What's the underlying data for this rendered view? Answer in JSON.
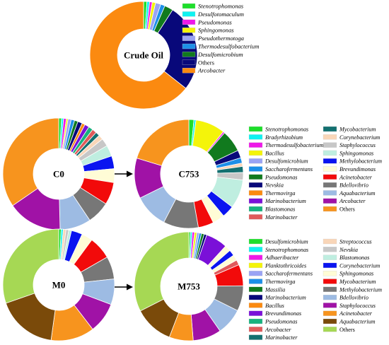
{
  "chart_data": [
    {
      "type": "pie",
      "center_label": "Crude Oil",
      "slices": [
        {
          "name": "Stenotrophomonas",
          "value": 1.0,
          "color": "#1ede2b"
        },
        {
          "name": "Desulfotomaculum",
          "value": 0.8,
          "color": "#10f2f0"
        },
        {
          "name": "Pseudomonas",
          "value": 0.8,
          "color": "#ee18e8"
        },
        {
          "name": "Sphingomonas",
          "value": 1.0,
          "color": "#f4f40a"
        },
        {
          "name": "Pseudothermotoga",
          "value": 1.6,
          "color": "#9aa3f4"
        },
        {
          "name": "Thermodesulfobacterium",
          "value": 1.3,
          "color": "#1c8fe8"
        },
        {
          "name": "Desulfomicrobium",
          "value": 2.6,
          "color": "#117a1e"
        },
        {
          "name": "Others",
          "value": 26.5,
          "color": "#08087a"
        },
        {
          "name": "Arcobacter",
          "value": 64.4,
          "color": "#fb8a10"
        }
      ]
    },
    {
      "type": "pie",
      "center_label": "C0",
      "slices": [
        {
          "name": "Stenotrophomonas",
          "value": 0.8,
          "color": "#1ede2b"
        },
        {
          "name": "Bradyrhizobium",
          "value": 0.6,
          "color": "#10f2f0"
        },
        {
          "name": "Thermodesulfobacterium",
          "value": 0.8,
          "color": "#ee18e8"
        },
        {
          "name": "Bacillus",
          "value": 0.5,
          "color": "#f4f40a"
        },
        {
          "name": "Desulfomicrobium",
          "value": 0.9,
          "color": "#9aa3f4"
        },
        {
          "name": "Saccharofermentans",
          "value": 1.0,
          "color": "#1c8fe8"
        },
        {
          "name": "Pseudomonas",
          "value": 1.0,
          "color": "#117a1e"
        },
        {
          "name": "Nevskia",
          "value": 1.3,
          "color": "#08087a"
        },
        {
          "name": "Thermovirga",
          "value": 0.9,
          "color": "#fb8a10"
        },
        {
          "name": "Marinobacterium",
          "value": 1.3,
          "color": "#7a10d8"
        },
        {
          "name": "Blastomonas",
          "value": 1.3,
          "color": "#18b27e"
        },
        {
          "name": "Marinobacter",
          "value": 1.3,
          "color": "#e05a5a"
        },
        {
          "name": "Mycobacterium",
          "value": 1.2,
          "color": "#137070"
        },
        {
          "name": "Corynebacterium",
          "value": 1.4,
          "color": "#f9d6b8"
        },
        {
          "name": "Staphylococcus",
          "value": 2.3,
          "color": "#c7c7c7"
        },
        {
          "name": "Sphingomonas",
          "value": 3.2,
          "color": "#bfeee0"
        },
        {
          "name": "Methylobacterium",
          "value": 3.7,
          "color": "#0a14f0"
        },
        {
          "name": "Brevundimonas",
          "value": 4.0,
          "color": "#fffcd6"
        },
        {
          "name": "Acinetobacter",
          "value": 6.5,
          "color": "#f20a0a"
        },
        {
          "name": "Bdellovibrio",
          "value": 6.6,
          "color": "#777777"
        },
        {
          "name": "Aquabacterium",
          "value": 9.0,
          "color": "#9dbbe3"
        },
        {
          "name": "Arcobacter",
          "value": 15.8,
          "color": "#a012a6"
        },
        {
          "name": "Others",
          "value": 34.6,
          "color": "#f7941e"
        }
      ]
    },
    {
      "type": "pie",
      "center_label": "C753",
      "slices": [
        {
          "name": "Stenotrophomonas",
          "value": 1.5,
          "color": "#1ede2b"
        },
        {
          "name": "Bradyrhizobium",
          "value": 0.6,
          "color": "#10f2f0"
        },
        {
          "name": "Bacillus",
          "value": 8.8,
          "color": "#f4f40a"
        },
        {
          "name": "Thermodesulfobacterium",
          "value": 0.5,
          "color": "#ee18e8"
        },
        {
          "name": "Pseudomonas",
          "value": 6.5,
          "color": "#117a1e"
        },
        {
          "name": "Nevskia",
          "value": 2.3,
          "color": "#08087a"
        },
        {
          "name": "Saccharofermentans",
          "value": 1.6,
          "color": "#1c8fe8"
        },
        {
          "name": "Corynebacterium",
          "value": 1.0,
          "color": "#f9d6b8"
        },
        {
          "name": "Mycobacterium",
          "value": 1.8,
          "color": "#137070"
        },
        {
          "name": "Staphylococcus",
          "value": 2.2,
          "color": "#c7c7c7"
        },
        {
          "name": "Sphingomonas",
          "value": 8.6,
          "color": "#bfeee0"
        },
        {
          "name": "Methylobacterium",
          "value": 3.6,
          "color": "#0a14f0"
        },
        {
          "name": "Brevundimonas",
          "value": 3.6,
          "color": "#fffcd6"
        },
        {
          "name": "Acinetobacter",
          "value": 4.6,
          "color": "#f20a0a"
        },
        {
          "name": "Bdellovibrio",
          "value": 10.4,
          "color": "#777777"
        },
        {
          "name": "Aquabacterium",
          "value": 10.1,
          "color": "#9dbbe3"
        },
        {
          "name": "Arcobacter",
          "value": 12.0,
          "color": "#a012a6"
        },
        {
          "name": "Others",
          "value": 20.3,
          "color": "#f7941e"
        }
      ]
    },
    {
      "type": "pie",
      "center_label": "M0",
      "slices": [
        {
          "name": "Desulfomicrobium",
          "value": 0.7,
          "color": "#1ede2b"
        },
        {
          "name": "Stenotrophomonas",
          "value": 0.6,
          "color": "#10f2f0"
        },
        {
          "name": "Streptococcus",
          "value": 0.8,
          "color": "#f9d6b8"
        },
        {
          "name": "Nevskia",
          "value": 0.8,
          "color": "#c7c7c7"
        },
        {
          "name": "Blastomonas",
          "value": 0.8,
          "color": "#bfeee0"
        },
        {
          "name": "Corynebacterium",
          "value": 3.2,
          "color": "#0a14f0"
        },
        {
          "name": "Sphingomonas",
          "value": 3.2,
          "color": "#fffcd6"
        },
        {
          "name": "Mycobacterium",
          "value": 6.6,
          "color": "#f20a0a"
        },
        {
          "name": "Methylobacterium",
          "value": 6.6,
          "color": "#777777"
        },
        {
          "name": "Bdellovibrio",
          "value": 7.4,
          "color": "#9dbbe3"
        },
        {
          "name": "Staphylococcus",
          "value": 8.9,
          "color": "#a012a6"
        },
        {
          "name": "Acinetobacter",
          "value": 12.6,
          "color": "#f7941e"
        },
        {
          "name": "Aquabacterium",
          "value": 17.5,
          "color": "#7a4a0a"
        },
        {
          "name": "Others",
          "value": 30.3,
          "color": "#a6d854"
        }
      ]
    },
    {
      "type": "pie",
      "center_label": "M753",
      "slices": [
        {
          "name": "Desulfomicrobium",
          "value": 0.5,
          "color": "#1ede2b"
        },
        {
          "name": "Stenotrophomonas",
          "value": 0.5,
          "color": "#10f2f0"
        },
        {
          "name": "Adhaeribacter",
          "value": 0.7,
          "color": "#ee18e8"
        },
        {
          "name": "Planktothricoides",
          "value": 0.7,
          "color": "#f4f40a"
        },
        {
          "name": "Saccharofermentans",
          "value": 0.7,
          "color": "#9aa3f4"
        },
        {
          "name": "Thermovirga",
          "value": 0.7,
          "color": "#1c8fe8"
        },
        {
          "name": "Massilia",
          "value": 0.8,
          "color": "#117a1e"
        },
        {
          "name": "Marinobacterium",
          "value": 0.8,
          "color": "#08087a"
        },
        {
          "name": "Brevundimonas",
          "value": 6.5,
          "color": "#7a10d8"
        },
        {
          "name": "Pseudomonas",
          "value": 1.8,
          "color": "#fffcd6"
        },
        {
          "name": "Corynebacterium",
          "value": 1.8,
          "color": "#0a14f0"
        },
        {
          "name": "Sphingomonas",
          "value": 1.7,
          "color": "#fffcd6"
        },
        {
          "name": "Arcobacter",
          "value": 1.5,
          "color": "#e05a5a"
        },
        {
          "name": "Mycobacterium",
          "value": 6.4,
          "color": "#f20a0a"
        },
        {
          "name": "Methylobacterium",
          "value": 7.6,
          "color": "#777777"
        },
        {
          "name": "Bdellovibrio",
          "value": 8.0,
          "color": "#9dbbe3"
        },
        {
          "name": "Staphylococcus",
          "value": 8.5,
          "color": "#a012a6"
        },
        {
          "name": "Acinetobacter",
          "value": 7.2,
          "color": "#f7941e"
        },
        {
          "name": "Aquabacterium",
          "value": 11.8,
          "color": "#7a4a0a"
        },
        {
          "name": "Others",
          "value": 32.8,
          "color": "#a6d854"
        }
      ]
    }
  ],
  "legends": {
    "crude": [
      {
        "label": "Stenotrophomonas",
        "color": "#1ede2b",
        "italic": true
      },
      {
        "label": "Desulfotomaculum",
        "color": "#10f2f0",
        "italic": true
      },
      {
        "label": "Pseudomonas",
        "color": "#ee18e8",
        "italic": true
      },
      {
        "label": "Sphingomonas",
        "color": "#f4f40a",
        "italic": true
      },
      {
        "label": "Pseudothermotoga",
        "color": "#9aa3f4",
        "italic": true
      },
      {
        "label": "Thermodesulfobacterium",
        "color": "#1c8fe8",
        "italic": true
      },
      {
        "label": "Desulfomicrobium",
        "color": "#117a1e",
        "italic": true
      },
      {
        "label": "Others",
        "color": "#08087a",
        "italic": false
      },
      {
        "label": "Arcobacter",
        "color": "#fb8a10",
        "italic": true
      }
    ],
    "c_col1": [
      {
        "label": "Stenotrophomonas",
        "color": "#1ede2b",
        "italic": true
      },
      {
        "label": "Bradyrhizobium",
        "color": "#10f2f0",
        "italic": true
      },
      {
        "label": "Thermodesulfobacterium",
        "color": "#ee18e8",
        "italic": true
      },
      {
        "label": "Bacillus",
        "color": "#f4f40a",
        "italic": true
      },
      {
        "label": "Desulfomicrobium",
        "color": "#9aa3f4",
        "italic": true
      },
      {
        "label": "Saccharofermentans",
        "color": "#1c8fe8",
        "italic": true
      },
      {
        "label": "Pseudomonas",
        "color": "#117a1e",
        "italic": true
      },
      {
        "label": "Nevskia",
        "color": "#08087a",
        "italic": true
      },
      {
        "label": "Thermovirga",
        "color": "#fb8a10",
        "italic": true
      },
      {
        "label": "Marinobacterium",
        "color": "#7a10d8",
        "italic": true
      },
      {
        "label": "Blastomonas",
        "color": "#18b27e",
        "italic": true
      },
      {
        "label": "Marinobacter",
        "color": "#e05a5a",
        "italic": true
      }
    ],
    "c_col2": [
      {
        "label": "Mycobacterium",
        "color": "#137070",
        "italic": true
      },
      {
        "label": "Corynebacterium",
        "color": "#f9d6b8",
        "italic": true
      },
      {
        "label": "Staphylococcus",
        "color": "#c7c7c7",
        "italic": true
      },
      {
        "label": "Sphingomonas",
        "color": "#bfeee0",
        "italic": true
      },
      {
        "label": "Methylobacterium",
        "color": "#0a14f0",
        "italic": true
      },
      {
        "label": "Brevundimonas",
        "color": "#fffcd6",
        "italic": true
      },
      {
        "label": "Acinetobacter",
        "color": "#f20a0a",
        "italic": true
      },
      {
        "label": "Bdellovibrio",
        "color": "#777777",
        "italic": true
      },
      {
        "label": "Aquabacterium",
        "color": "#9dbbe3",
        "italic": true
      },
      {
        "label": "Arcobacter",
        "color": "#a012a6",
        "italic": true
      },
      {
        "label": "Others",
        "color": "#f7941e",
        "italic": false
      }
    ],
    "m_col1": [
      {
        "label": "Desulfomicrobium",
        "color": "#1ede2b",
        "italic": true
      },
      {
        "label": "Stenotrophomonas",
        "color": "#10f2f0",
        "italic": true
      },
      {
        "label": "Adhaeribacter",
        "color": "#ee18e8",
        "italic": true
      },
      {
        "label": "Planktothricoides",
        "color": "#f4f40a",
        "italic": true
      },
      {
        "label": "Saccharofermentans",
        "color": "#9aa3f4",
        "italic": true
      },
      {
        "label": "Thermovirga",
        "color": "#1c8fe8",
        "italic": true
      },
      {
        "label": "Massilia",
        "color": "#117a1e",
        "italic": true
      },
      {
        "label": "Marinobacterium",
        "color": "#08087a",
        "italic": true
      },
      {
        "label": "Bacillus",
        "color": "#fb8a10",
        "italic": true
      },
      {
        "label": "Brevundimonas",
        "color": "#7a10d8",
        "italic": true
      },
      {
        "label": "Pseudomonas",
        "color": "#18b27e",
        "italic": true
      },
      {
        "label": "Arcobacter",
        "color": "#e05a5a",
        "italic": true
      },
      {
        "label": "Marinobacter",
        "color": "#137070",
        "italic": true
      }
    ],
    "m_col2": [
      {
        "label": "Streptococcus",
        "color": "#f9d6b8",
        "italic": true
      },
      {
        "label": "Nevskia",
        "color": "#c7c7c7",
        "italic": true
      },
      {
        "label": "Blastomonas",
        "color": "#bfeee0",
        "italic": true
      },
      {
        "label": "Corynebacterium",
        "color": "#0a14f0",
        "italic": true
      },
      {
        "label": "Sphingomonas",
        "color": "#fffcd6",
        "italic": true
      },
      {
        "label": "Mycobacterium",
        "color": "#f20a0a",
        "italic": true
      },
      {
        "label": "Methylobacterium",
        "color": "#777777",
        "italic": true
      },
      {
        "label": "Bdellovibrio",
        "color": "#9dbbe3",
        "italic": true
      },
      {
        "label": "Staphylococcus",
        "color": "#a012a6",
        "italic": true
      },
      {
        "label": "Acinetobacter",
        "color": "#f7941e",
        "italic": true
      },
      {
        "label": "Aquabacterium",
        "color": "#7a4a0a",
        "italic": true
      },
      {
        "label": "Others",
        "color": "#a6d854",
        "italic": false
      }
    ]
  }
}
